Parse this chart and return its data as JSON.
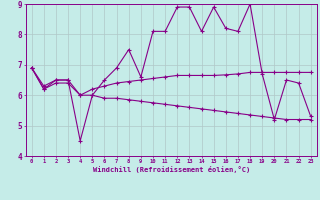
{
  "xlabel": "Windchill (Refroidissement éolien,°C)",
  "xlim": [
    -0.5,
    23.5
  ],
  "ylim": [
    4,
    9
  ],
  "background_color": "#c5ece8",
  "grid_color": "#b0c8c8",
  "line_color": "#880088",
  "line1_x": [
    0,
    1,
    2,
    3,
    4,
    5,
    6,
    7,
    8,
    9,
    10,
    11,
    12,
    13,
    14,
    15,
    16,
    17,
    18,
    19,
    20,
    21,
    22,
    23
  ],
  "line1_y": [
    6.9,
    6.2,
    6.5,
    6.5,
    4.5,
    6.0,
    6.5,
    6.9,
    7.5,
    6.6,
    8.1,
    8.1,
    8.9,
    8.9,
    8.1,
    8.9,
    8.2,
    8.1,
    9.0,
    6.7,
    5.2,
    6.5,
    6.4,
    5.3
  ],
  "line2_x": [
    0,
    1,
    2,
    3,
    4,
    5,
    6,
    7,
    8,
    9,
    10,
    11,
    12,
    13,
    14,
    15,
    16,
    17,
    18,
    19,
    20,
    21,
    22,
    23
  ],
  "line2_y": [
    6.9,
    6.3,
    6.5,
    6.5,
    6.0,
    6.2,
    6.3,
    6.4,
    6.45,
    6.5,
    6.55,
    6.6,
    6.65,
    6.65,
    6.65,
    6.65,
    6.67,
    6.7,
    6.75,
    6.75,
    6.75,
    6.75,
    6.75,
    6.75
  ],
  "line3_x": [
    0,
    1,
    2,
    3,
    4,
    5,
    6,
    7,
    8,
    9,
    10,
    11,
    12,
    13,
    14,
    15,
    16,
    17,
    18,
    19,
    20,
    21,
    22,
    23
  ],
  "line3_y": [
    6.9,
    6.2,
    6.4,
    6.4,
    6.0,
    6.0,
    5.9,
    5.9,
    5.85,
    5.8,
    5.75,
    5.7,
    5.65,
    5.6,
    5.55,
    5.5,
    5.45,
    5.4,
    5.35,
    5.3,
    5.25,
    5.2,
    5.2,
    5.2
  ],
  "xtick_labels": [
    "0",
    "1",
    "2",
    "3",
    "4",
    "5",
    "6",
    "7",
    "8",
    "9",
    "10",
    "11",
    "12",
    "13",
    "14",
    "15",
    "16",
    "17",
    "18",
    "19",
    "20",
    "21",
    "22",
    "23"
  ],
  "ytick_labels": [
    "4",
    "5",
    "6",
    "7",
    "8",
    "9"
  ],
  "ytick_values": [
    4,
    5,
    6,
    7,
    8,
    9
  ]
}
